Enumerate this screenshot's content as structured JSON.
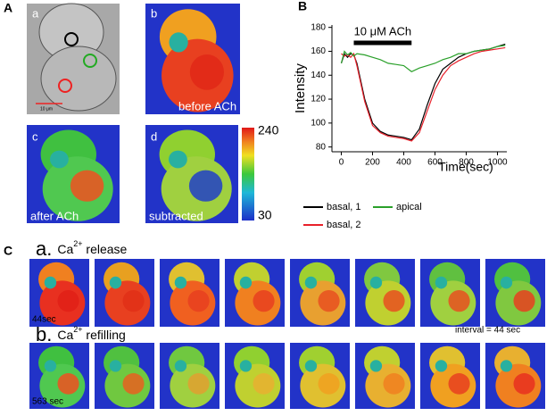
{
  "figure": {
    "panel_a": "A",
    "panel_b": "B",
    "panel_c": "C",
    "img_a": "a",
    "img_b": "b",
    "img_c": "c",
    "img_d": "d",
    "before": "before ACh",
    "after": "after ACh",
    "subtracted": "subtracted",
    "scale_label": "10 μm",
    "colorbar_max": 240,
    "colorbar_min": 30,
    "row_a": {
      "prefix": "a.",
      "ion": "Ca",
      "charge": "2+",
      "rest": " release"
    },
    "row_b": {
      "prefix": "b.",
      "ion": "Ca",
      "charge": "2+",
      "rest": " refilling"
    },
    "row_a_time": "44sec",
    "row_b_time": "563 sec",
    "interval": "interval = 44 sec"
  },
  "chart_data": {
    "type": "line",
    "xlabel": "Time(sec)",
    "ylabel": "Intensity",
    "annotation": {
      "text": "10 μM ACh",
      "start": 80,
      "end": 450
    },
    "x": [
      0,
      20,
      40,
      60,
      80,
      100,
      150,
      200,
      250,
      300,
      350,
      400,
      450,
      500,
      550,
      600,
      650,
      700,
      750,
      800,
      850,
      900,
      950,
      1000,
      1050
    ],
    "series": [
      {
        "name": "basal, 1",
        "color": "#000000",
        "values": [
          150,
          158,
          155,
          158,
          157,
          150,
          120,
          100,
          93,
          90,
          89,
          88,
          86,
          95,
          115,
          133,
          145,
          150,
          155,
          158,
          160,
          161,
          162,
          164,
          166
        ]
      },
      {
        "name": "basal, 2",
        "color": "#e8202a",
        "values": [
          158,
          156,
          157,
          155,
          158,
          148,
          118,
          98,
          92,
          89,
          88,
          87,
          85,
          92,
          110,
          128,
          140,
          148,
          152,
          155,
          158,
          160,
          161,
          162,
          163
        ]
      },
      {
        "name": "apical",
        "color": "#2aa02a",
        "values": [
          150,
          160,
          157,
          159,
          156,
          158,
          157,
          155,
          153,
          150,
          149,
          148,
          143,
          146,
          148,
          150,
          153,
          155,
          158,
          158,
          160,
          161,
          162,
          164,
          165
        ]
      }
    ],
    "xlim": [
      -60,
      1060
    ],
    "ylim": [
      76,
      182
    ],
    "xticks": [
      0,
      200,
      400,
      600,
      800,
      1000
    ],
    "yticks": [
      80,
      100,
      120,
      140,
      160,
      180
    ]
  }
}
